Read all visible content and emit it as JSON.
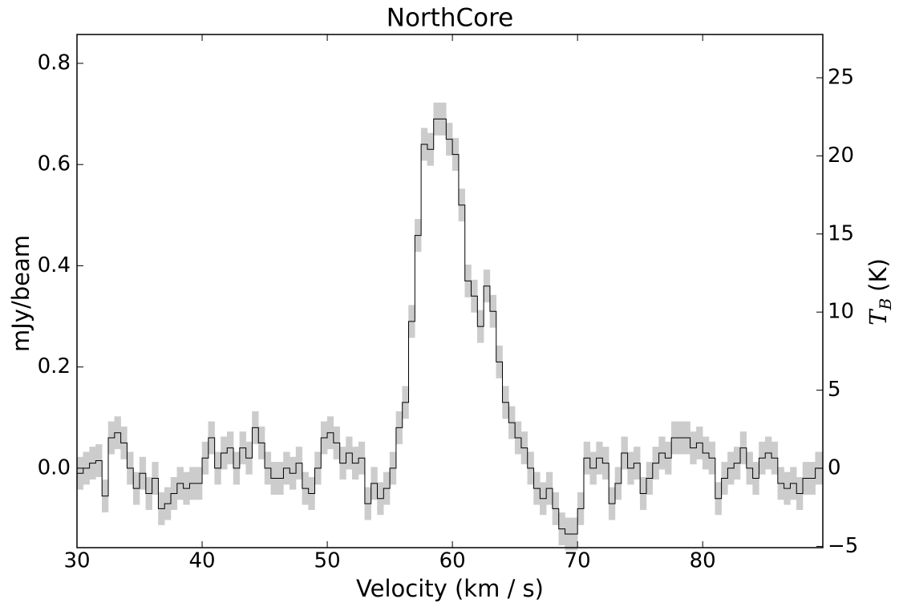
{
  "chart_data": {
    "type": "step",
    "title": "NorthCore",
    "x_label": "Velocity (km / s)",
    "y_label": "mJy/beam",
    "y2_label": {
      "symbol": "T",
      "subscript": "B",
      "unit": "(K)"
    },
    "xlim": [
      30,
      89.6
    ],
    "xticks": [
      30,
      40,
      50,
      60,
      70,
      80
    ],
    "ylim": [
      -0.157,
      0.857
    ],
    "yticks": [
      {
        "value": 0,
        "label": "0.0"
      },
      0.2,
      0.4,
      0.6,
      0.8
    ],
    "y2lim": [
      -5.08,
      27.77
    ],
    "y2ticks": [
      {
        "value": -5,
        "label": "−5"
      },
      0,
      5,
      10,
      15,
      20,
      25
    ],
    "series": [
      {
        "color": "#000000",
        "band_color": "#cccccc",
        "error": 0.032,
        "x": [
          30,
          30.5,
          31,
          31.5,
          32,
          32.5,
          33,
          33.5,
          34,
          34.5,
          35,
          35.5,
          36,
          36.5,
          37,
          37.5,
          38,
          38.5,
          39,
          39.5,
          40,
          40.5,
          41,
          41.5,
          42,
          42.5,
          43,
          43.5,
          44,
          44.5,
          45,
          45.5,
          46,
          46.5,
          47,
          47.5,
          48,
          48.5,
          49,
          49.5,
          50,
          50.5,
          51,
          51.5,
          52,
          52.5,
          53,
          53.5,
          54,
          54.5,
          55,
          55.5,
          56,
          56.5,
          57,
          57.5,
          58,
          58.5,
          59,
          59.5,
          60,
          60.5,
          61,
          61.5,
          62,
          62.5,
          63,
          63.5,
          64,
          64.5,
          65,
          65.5,
          66,
          66.5,
          67,
          67.5,
          68,
          68.5,
          69,
          69.5,
          70,
          70.5,
          71,
          71.5,
          72,
          72.5,
          73,
          73.5,
          74,
          74.5,
          75,
          75.5,
          76,
          76.5,
          77,
          77.5,
          78,
          78.5,
          79,
          79.5,
          80,
          80.5,
          81,
          81.5,
          82,
          82.5,
          83,
          83.5,
          84,
          84.5,
          85,
          85.5,
          86,
          86.5,
          87,
          87.5,
          88,
          88.5,
          89,
          89.5
        ],
        "values": [
          -0.01,
          0.0,
          0.01,
          0.015,
          -0.055,
          0.06,
          0.07,
          0.05,
          0.0,
          -0.04,
          -0.01,
          -0.05,
          -0.02,
          -0.08,
          -0.07,
          -0.05,
          -0.03,
          -0.04,
          -0.03,
          -0.03,
          0.02,
          0.06,
          0.0,
          0.03,
          0.04,
          0.0,
          0.04,
          0.02,
          0.08,
          0.05,
          0.0,
          -0.02,
          -0.02,
          0.0,
          -0.01,
          0.01,
          -0.04,
          -0.05,
          0.0,
          0.06,
          0.07,
          0.05,
          0.01,
          0.03,
          0.01,
          0.02,
          -0.07,
          -0.03,
          -0.06,
          -0.04,
          0.0,
          0.08,
          0.13,
          0.29,
          0.46,
          0.64,
          0.63,
          0.69,
          0.69,
          0.65,
          0.62,
          0.52,
          0.37,
          0.34,
          0.28,
          0.36,
          0.31,
          0.21,
          0.13,
          0.09,
          0.06,
          0.04,
          0.0,
          -0.04,
          -0.06,
          -0.04,
          -0.08,
          -0.12,
          -0.13,
          -0.13,
          -0.08,
          0.02,
          0.0,
          0.02,
          0.01,
          -0.07,
          -0.03,
          0.03,
          0.0,
          0.01,
          -0.05,
          -0.02,
          0.01,
          0.03,
          0.02,
          0.06,
          0.06,
          0.06,
          0.04,
          0.05,
          0.03,
          0.02,
          -0.06,
          -0.02,
          0.0,
          0.01,
          0.04,
          0.0,
          -0.02,
          0.02,
          0.03,
          0.02,
          -0.03,
          -0.04,
          -0.03,
          -0.05,
          -0.02,
          -0.02,
          0.0,
          0.0
        ]
      }
    ]
  }
}
